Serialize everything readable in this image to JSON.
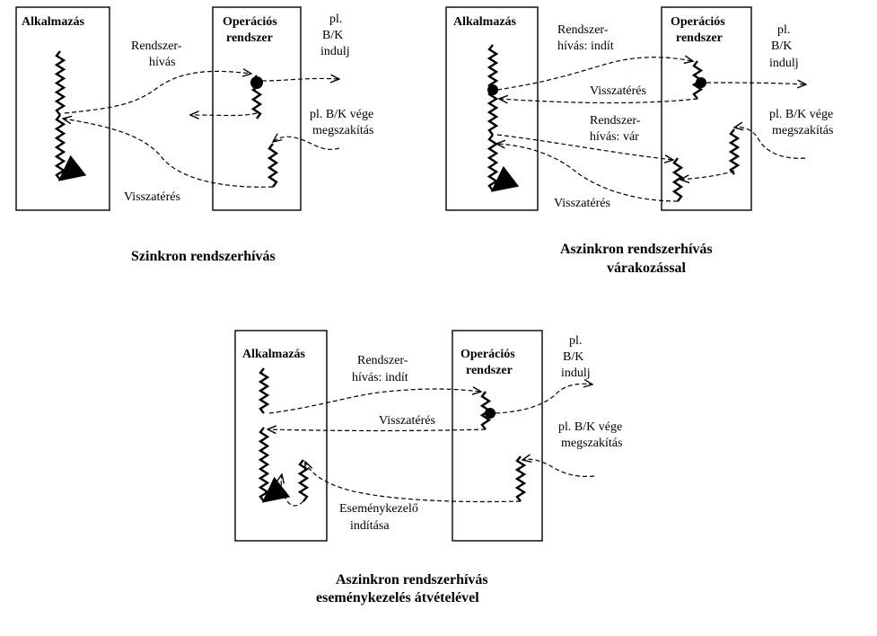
{
  "common": {
    "app": "Alkalmazás",
    "os_line1": "Operációs",
    "os_line2": "rendszer",
    "io_start": [
      "pl.",
      "B/K",
      "indulj"
    ],
    "io_end_line1": "pl. B/K vége",
    "io_end_line2": "megszakítás",
    "return": "Visszatérés"
  },
  "sync": {
    "call_line1": "Rendszer-",
    "call_line2": "hívás",
    "caption": "Szinkron rendszerhívás"
  },
  "async_wait": {
    "call_start_line1": "Rendszer-",
    "call_start_line2": "hívás: indít",
    "call_wait_line1": "Rendszer-",
    "call_wait_line2": "hívás: vár",
    "caption_line1": "Aszinkron rendszerhívás",
    "caption_line2": "várakozással"
  },
  "async_event": {
    "call_start_line1": "Rendszer-",
    "call_start_line2": "hívás: indít",
    "handler_line1": "Eseménykezelő",
    "handler_line2": "indítása",
    "caption_line1": "Aszinkron rendszerhívás",
    "caption_line2": "eseménykezelés átvételével"
  }
}
